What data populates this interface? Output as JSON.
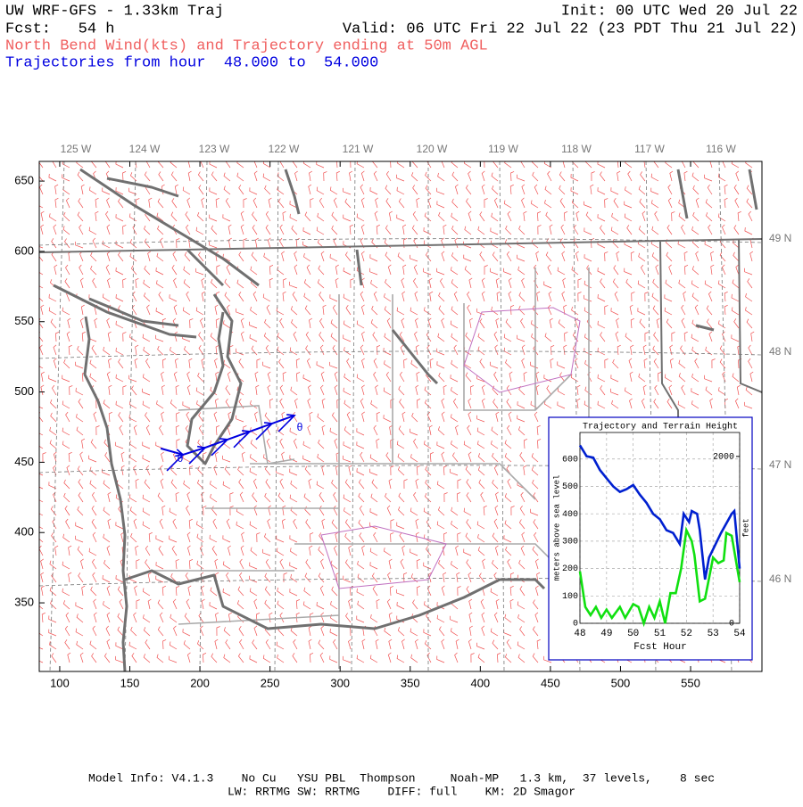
{
  "header": {
    "title": "UW WRF-GFS - 1.33km Traj",
    "init": "Init: 00 UTC Wed 20 Jul 22",
    "fcst": "Fcst:   54 h",
    "valid": "Valid: 06 UTC Fri 22 Jul 22 (23 PDT Thu 21 Jul 22)",
    "subtitle": "North Bend Wind(kts) and Trajectory ending at 50m AGL",
    "trajectory_range": "Trajectories from hour  48.000 to  54.000"
  },
  "map": {
    "xlim": [
      85.4,
      600.9
    ],
    "ylim": [
      301.2,
      664
    ],
    "xticks": [
      100,
      150,
      200,
      250,
      300,
      350,
      400,
      450,
      500,
      550
    ],
    "yticks": [
      350,
      400,
      450,
      500,
      550,
      600,
      650
    ],
    "lon_labels": [
      "125 W",
      "124 W",
      "123 W",
      "122 W",
      "121 W",
      "120 W",
      "119 W",
      "118 W",
      "117 W",
      "116 W"
    ],
    "lat_labels": [
      "49 N",
      "48 N",
      "47 N",
      "46 N"
    ],
    "trajectory": {
      "color": "#0000e0",
      "x": [
        172.0,
        187.9,
        203.8,
        219.7,
        235.6,
        251.5,
        267.5
      ],
      "y": [
        459.8,
        455.4,
        460.4,
        466.2,
        471.9,
        477.6,
        483.3
      ]
    },
    "trajectory_markers": [
      "θ",
      "θ"
    ]
  },
  "chart_data": {
    "type": "line",
    "title": "Trajectory and Terrain Height",
    "x_label": "Fcst Hour",
    "y_label": "meters above sea level",
    "y2_label": "feet",
    "xlim": [
      48,
      54
    ],
    "xticks": [
      48,
      49,
      50,
      51,
      52,
      53,
      54
    ],
    "ylim": [
      0,
      697
    ],
    "yticks": [
      0,
      100,
      200,
      300,
      400,
      500,
      600
    ],
    "y2lim": [
      0,
      2287
    ],
    "y2ticks": [
      0,
      2000
    ],
    "grid": true,
    "series": [
      {
        "name": "Trajectory",
        "color": "#0020d0",
        "x": [
          48,
          48.25,
          48.5,
          48.75,
          49,
          49.25,
          49.5,
          49.75,
          50,
          50.25,
          50.5,
          50.75,
          51,
          51.25,
          51.5,
          51.75,
          51.9,
          52.1,
          52.2,
          52.4,
          52.5,
          52.7,
          52.85,
          53,
          53.3,
          53.7,
          53.8,
          54
        ],
        "values": [
          650,
          610,
          605,
          560,
          530,
          500,
          480,
          490,
          505,
          470,
          440,
          400,
          380,
          340,
          330,
          290,
          400,
          370,
          410,
          400,
          340,
          160,
          240,
          270,
          330,
          400,
          410,
          200
        ]
      },
      {
        "name": "Terrain",
        "color": "#10e010",
        "x": [
          48,
          48.2,
          48.4,
          48.6,
          48.8,
          49,
          49.2,
          49.5,
          49.7,
          50,
          50.2,
          50.4,
          50.6,
          50.8,
          51,
          51.2,
          51.4,
          51.6,
          51.8,
          52,
          52.2,
          52.3,
          52.5,
          52.7,
          53,
          53.2,
          53.4,
          53.5,
          53.7,
          54
        ],
        "values": [
          190,
          60,
          30,
          60,
          20,
          50,
          20,
          60,
          20,
          70,
          60,
          0,
          60,
          20,
          80,
          0,
          110,
          110,
          200,
          340,
          300,
          250,
          80,
          90,
          240,
          220,
          230,
          330,
          320,
          150
        ]
      }
    ]
  },
  "footer": {
    "line1": "Model Info: V4.1.3    No Cu   YSU PBL  Thompson     Noah-MP   1.3 km,  37 levels,    8 sec",
    "line2": "LW: RRTMG SW: RRTMG    DIFF: full    KM: 2D Smagor"
  }
}
